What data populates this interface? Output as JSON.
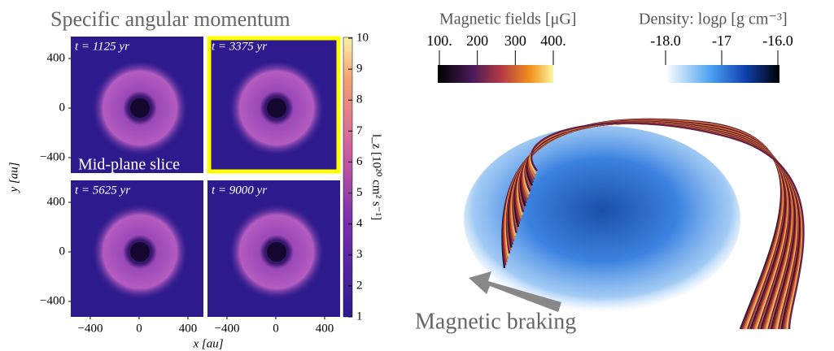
{
  "left_panel": {
    "title": "Specific angular momentum",
    "panels": [
      {
        "time": "t = 1125 yr"
      },
      {
        "time": "t = 3375 yr"
      },
      {
        "time": "t = 5625 yr"
      },
      {
        "time": "t = 9000 yr"
      }
    ],
    "annotation": "Mid-plane slice",
    "y_axis_label": "y [au]",
    "x_axis_label": "x [au]",
    "y_ticks": [
      "400",
      "0",
      "−400"
    ],
    "x_ticks": [
      "−400",
      "0",
      "400"
    ],
    "colorbar": {
      "label": "l_z [10²⁰ cm² s⁻¹]",
      "ticks": [
        "1",
        "2",
        "3",
        "4",
        "5",
        "6",
        "7",
        "8",
        "9",
        "10"
      ]
    }
  },
  "right_panel": {
    "magnetic_colorbar": {
      "label": "Magnetic fields [μG]",
      "ticks": [
        "100.",
        "200",
        "300",
        "400."
      ]
    },
    "density_colorbar": {
      "label": "Density: logρ [g cm⁻³]",
      "ticks": [
        "-18.0",
        "-17",
        "-16.0"
      ]
    },
    "annotation": "Magnetic braking"
  }
}
